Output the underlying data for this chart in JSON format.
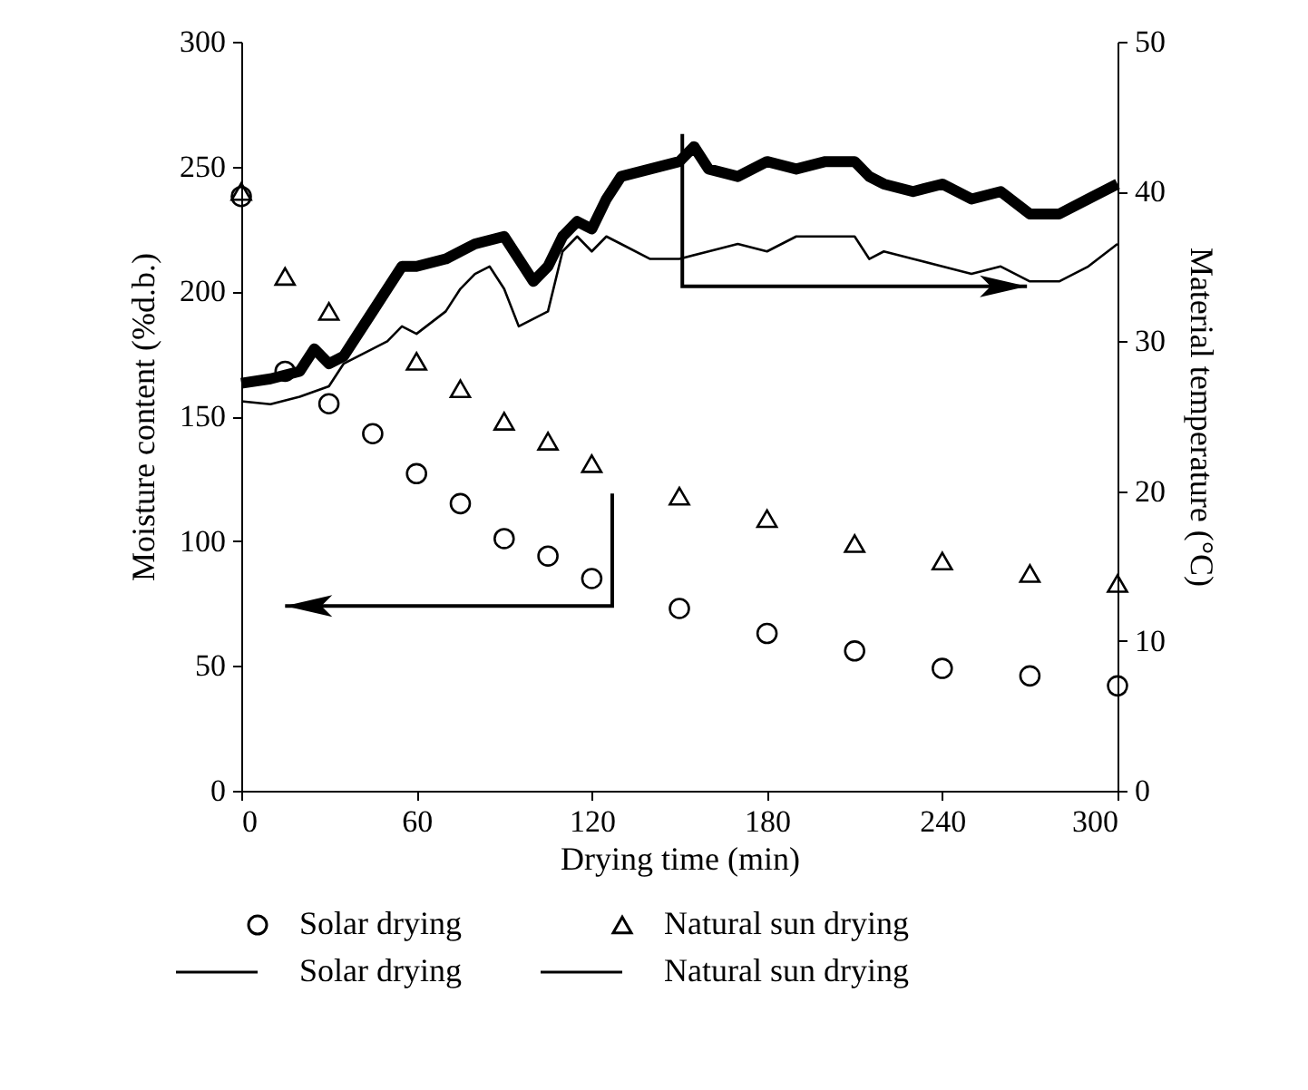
{
  "chart_data": {
    "type": "scatter",
    "xlabel": "Drying time (min)",
    "ylabel": "Moisture content (%d.b.)",
    "y2label": "Material temperature (°C)",
    "xlim": [
      0,
      300
    ],
    "xticks": [
      0,
      60,
      120,
      180,
      240,
      300
    ],
    "ylim": [
      0,
      300
    ],
    "yticks": [
      0,
      50,
      100,
      150,
      200,
      250,
      300
    ],
    "y2lim": [
      0,
      50
    ],
    "y2ticks": [
      0,
      10,
      20,
      30,
      40,
      50
    ],
    "grid": false,
    "legend": "bottom",
    "series": [
      {
        "name": "Solar drying",
        "marker": "circle",
        "color": "#000000",
        "x": [
          0,
          15,
          30,
          45,
          60,
          75,
          90,
          105,
          120,
          150,
          180,
          210,
          240,
          270,
          300
        ],
        "values": [
          238,
          168,
          155,
          143,
          127,
          115,
          101,
          94,
          85,
          73,
          63,
          56,
          49,
          46,
          42
        ]
      },
      {
        "name": "Natural sun drying",
        "marker": "triangle",
        "color": "#000000",
        "x": [
          0,
          15,
          30,
          45,
          60,
          75,
          90,
          105,
          120,
          150,
          180,
          210,
          240,
          270,
          300
        ],
        "values": [
          240,
          206,
          192,
          null,
          172,
          161,
          148,
          140,
          131,
          118,
          109,
          99,
          92,
          87,
          83
        ]
      },
      {
        "name": "Solar drying",
        "type": "line",
        "axis": "y2",
        "color": "#000000",
        "x": [
          0,
          10,
          20,
          25,
          30,
          35,
          40,
          45,
          50,
          55,
          60,
          70,
          80,
          90,
          95,
          100,
          105,
          110,
          115,
          120,
          125,
          130,
          140,
          150,
          155,
          160,
          170,
          180,
          190,
          200,
          210,
          215,
          220,
          230,
          240,
          250,
          260,
          270,
          280,
          290,
          300
        ],
        "values": [
          27.2,
          27.5,
          28,
          29.5,
          28.5,
          29,
          30.5,
          32,
          33.5,
          35,
          35,
          35.5,
          36.5,
          37,
          35.5,
          34,
          35,
          37,
          38,
          37.5,
          39.5,
          41,
          41.5,
          42,
          43,
          41.5,
          41,
          42,
          41.5,
          42,
          42,
          41,
          40.5,
          40,
          40.5,
          39.5,
          40,
          38.5,
          38.5,
          39.5,
          40.5
        ]
      },
      {
        "name": "Natural sun drying",
        "type": "line",
        "axis": "y2",
        "color": "#000000",
        "x": [
          0,
          10,
          20,
          30,
          35,
          40,
          50,
          55,
          60,
          70,
          75,
          80,
          85,
          90,
          95,
          100,
          105,
          110,
          115,
          120,
          125,
          130,
          140,
          150,
          160,
          170,
          180,
          190,
          200,
          210,
          215,
          220,
          230,
          240,
          250,
          260,
          270,
          280,
          290,
          300
        ],
        "values": [
          26,
          25.8,
          26.3,
          27,
          28.5,
          29,
          30,
          31,
          30.5,
          32,
          33.5,
          34.5,
          35,
          33.5,
          31,
          31.5,
          32,
          36,
          37,
          36,
          37,
          36.5,
          35.5,
          35.5,
          36,
          36.5,
          36,
          37,
          37,
          37,
          35.5,
          36,
          35.5,
          35,
          34.5,
          35,
          34,
          34,
          35,
          36.5
        ]
      }
    ]
  }
}
